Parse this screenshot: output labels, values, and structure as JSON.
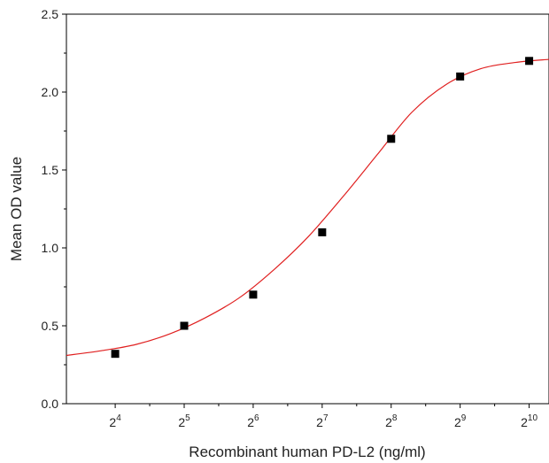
{
  "chart_data": {
    "type": "scatter",
    "xlabel": "Recombinant human PD-L2 (ng/ml)",
    "ylabel": "Mean OD value",
    "x_scale": "log2",
    "x_ticks": [
      {
        "value": 16,
        "base": "2",
        "exp": "4"
      },
      {
        "value": 32,
        "base": "2",
        "exp": "5"
      },
      {
        "value": 64,
        "base": "2",
        "exp": "6"
      },
      {
        "value": 128,
        "base": "2",
        "exp": "7"
      },
      {
        "value": 256,
        "base": "2",
        "exp": "8"
      },
      {
        "value": 512,
        "base": "2",
        "exp": "9"
      },
      {
        "value": 1024,
        "base": "2",
        "exp": "10"
      }
    ],
    "y_ticks": [
      "0.0",
      "0.5",
      "1.0",
      "1.5",
      "2.0",
      "2.5"
    ],
    "xlim": [
      9.8,
      1250
    ],
    "ylim": [
      0,
      2.5
    ],
    "grid": false,
    "series": [
      {
        "type": "scatter",
        "marker": "square",
        "color": "#000000",
        "x": [
          16,
          32,
          64,
          128,
          256,
          512,
          1024
        ],
        "y": [
          0.32,
          0.5,
          0.7,
          1.1,
          1.7,
          2.1,
          2.2
        ]
      },
      {
        "type": "line",
        "color": "#e02020",
        "x": [
          9.8,
          13.9,
          19.7,
          27.9,
          39.4,
          55.7,
          78.8,
          111,
          158,
          223,
          315,
          446,
          630,
          891,
          1250
        ],
        "y": [
          0.31,
          0.34,
          0.38,
          0.45,
          0.55,
          0.68,
          0.86,
          1.07,
          1.33,
          1.6,
          1.87,
          2.05,
          2.15,
          2.19,
          2.21
        ]
      }
    ]
  }
}
